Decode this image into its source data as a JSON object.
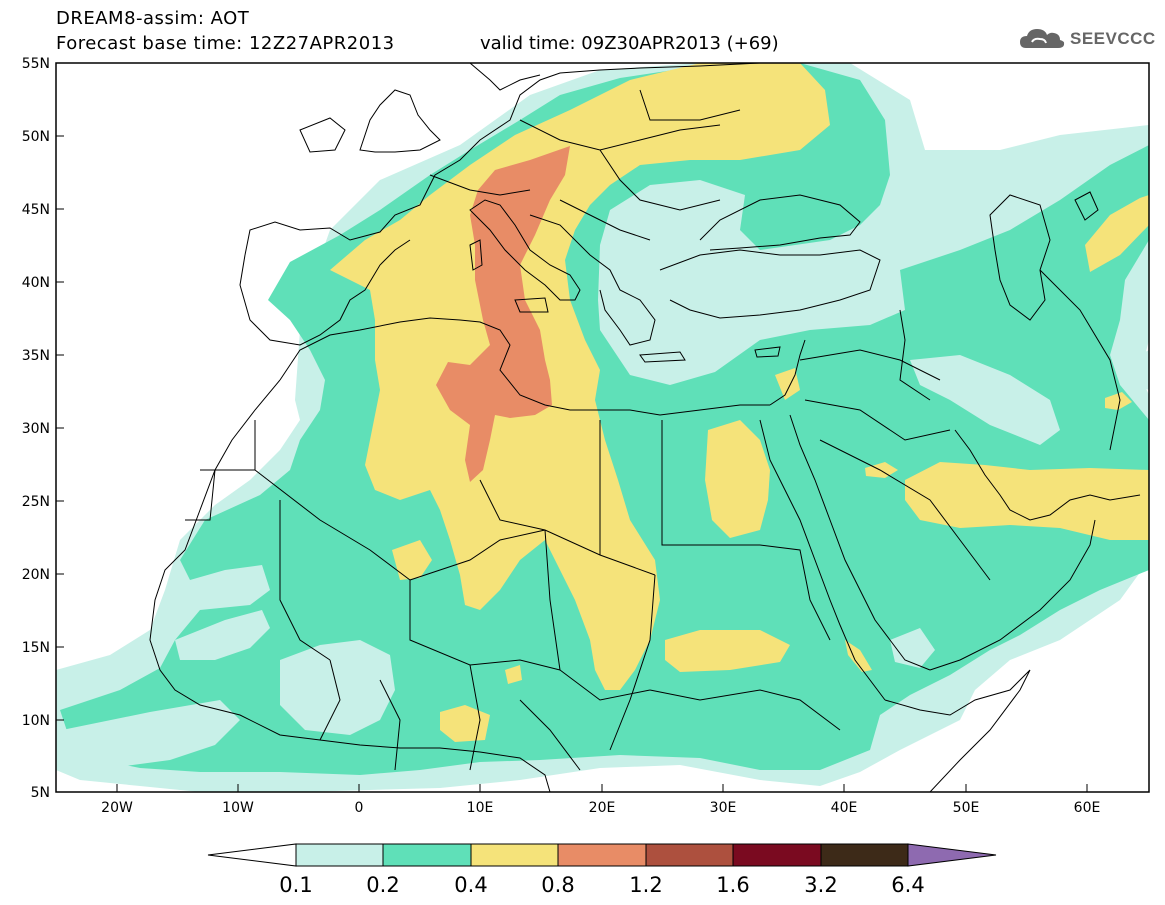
{
  "header": {
    "line1": "DREAM8-assim: AOT",
    "line2": "Forecast base time: 12Z27APR2013",
    "valid": "valid time: 09Z30APR2013 (+69)"
  },
  "logo": {
    "text": "SEEVCCC",
    "icon": "cloud-icon"
  },
  "axes": {
    "lat_labels": [
      "55N",
      "50N",
      "45N",
      "40N",
      "35N",
      "30N",
      "25N",
      "20N",
      "15N",
      "10N",
      "5N"
    ],
    "lon_labels": [
      "20W",
      "10W",
      "0",
      "10E",
      "20E",
      "30E",
      "40E",
      "50E",
      "60E"
    ],
    "lon_range": [
      -25,
      65
    ],
    "lat_range": [
      5,
      55
    ]
  },
  "colorbar": {
    "thresholds": [
      "0.1",
      "0.2",
      "0.4",
      "0.8",
      "1.2",
      "1.6",
      "3.2",
      "6.4"
    ],
    "colors": [
      "#ffffff",
      "#c8f0e8",
      "#5fe0b8",
      "#f5e37a",
      "#e88c66",
      "#ad503e",
      "#7a0a20",
      "#3d2a18",
      "#8e6ab0"
    ]
  },
  "colors": {
    "c0": "#ffffff",
    "c1": "#c8f0e8",
    "c2": "#5fe0b8",
    "c3": "#f5e37a",
    "c4": "#e88c66"
  }
}
